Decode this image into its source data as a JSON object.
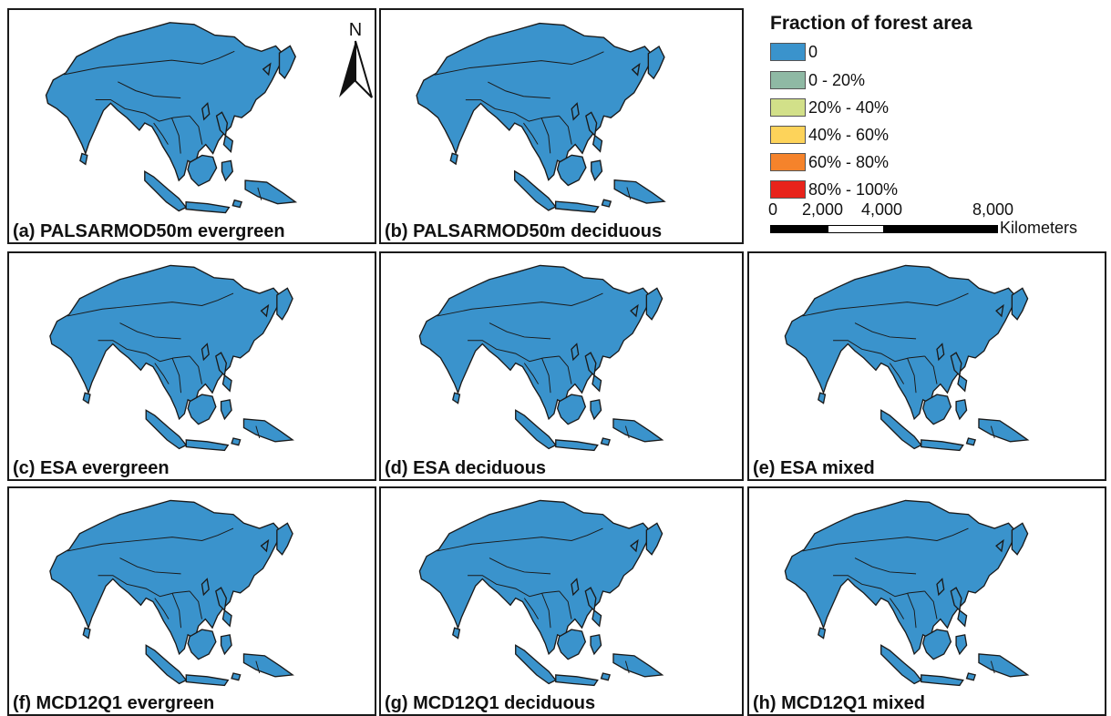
{
  "panels": [
    {
      "id": "a",
      "label": "(a) PALSARMOD50m evergreen"
    },
    {
      "id": "b",
      "label": "(b) PALSARMOD50m deciduous"
    },
    {
      "id": "c",
      "label": "(c) ESA evergreen"
    },
    {
      "id": "d",
      "label": "(d) ESA deciduous"
    },
    {
      "id": "e",
      "label": "(e) ESA mixed"
    },
    {
      "id": "f",
      "label": "(f) MCD12Q1 evergreen"
    },
    {
      "id": "g",
      "label": "(g) MCD12Q1 deciduous"
    },
    {
      "id": "h",
      "label": "(h) MCD12Q1 mixed"
    }
  ],
  "north_arrow": {
    "label": "N"
  },
  "legend": {
    "title": "Fraction of forest area",
    "items": [
      {
        "label": "0",
        "color": "#3a93cc"
      },
      {
        "label": "0 - 20%",
        "color": "#8fb9a4"
      },
      {
        "label": "20% - 40%",
        "color": "#d2e089"
      },
      {
        "label": "40% - 60%",
        "color": "#fdd35a"
      },
      {
        "label": "60% - 80%",
        "color": "#f5832b"
      },
      {
        "label": "80% - 100%",
        "color": "#e8231b"
      }
    ]
  },
  "scale_bar": {
    "ticks": [
      "0",
      "2,000",
      "4,000",
      "8,000"
    ],
    "units": "Kilometers"
  }
}
